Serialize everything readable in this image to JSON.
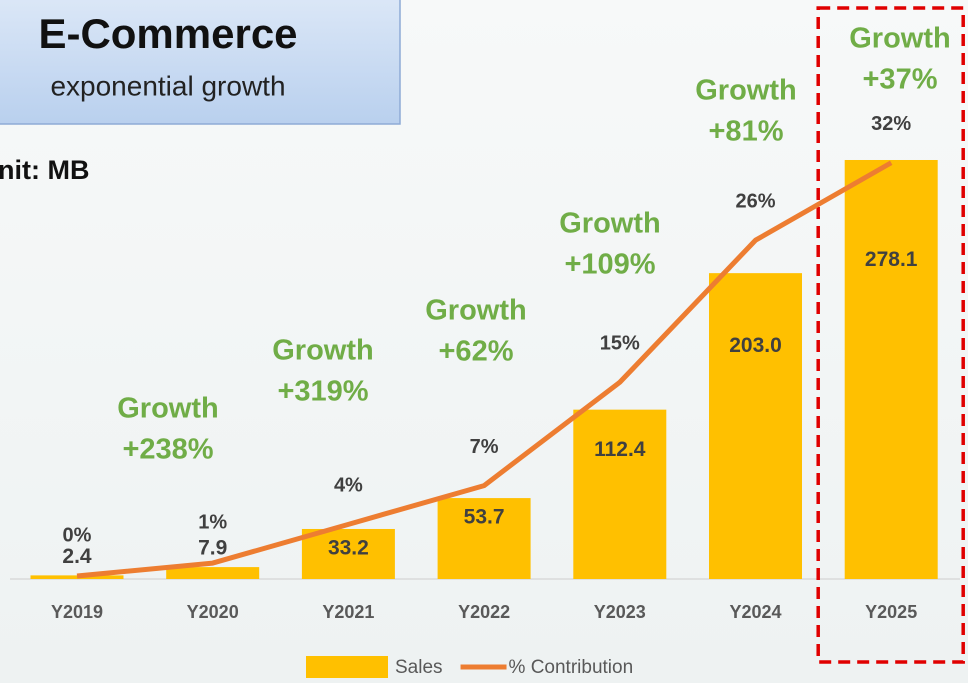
{
  "chart_data": {
    "type": "bar-line",
    "title": "E-Commerce",
    "subtitle": "exponential growth",
    "unit_label": "nit: MB",
    "categories": [
      "Y2019",
      "Y2020",
      "Y2021",
      "Y2022",
      "Y2023",
      "Y2024",
      "Y2025"
    ],
    "series": [
      {
        "name": "Sales",
        "type": "bar",
        "color": "#ffc000",
        "values": [
          2.4,
          7.9,
          33.2,
          53.7,
          112.4,
          203.0,
          278.1
        ],
        "value_labels": [
          "2.4",
          "7.9",
          "33.2",
          "53.7",
          "112.4",
          "203.0",
          "278.1"
        ]
      },
      {
        "name": "% Contribution",
        "type": "line",
        "axis": "y2",
        "color": "#ed7d31",
        "values": [
          0,
          1,
          4,
          7,
          15,
          26,
          32
        ],
        "value_labels": [
          "0%",
          "1%",
          "4%",
          "7%",
          "15%",
          "26%",
          "32%"
        ]
      }
    ],
    "annotations": [
      {
        "category": "Y2020",
        "lines": [
          "Growth",
          "+238%"
        ]
      },
      {
        "category": "Y2021",
        "lines": [
          "Growth",
          "+319%"
        ]
      },
      {
        "category": "Y2022",
        "lines": [
          "Growth",
          "+62%"
        ]
      },
      {
        "category": "Y2023",
        "lines": [
          "Growth",
          "+109%"
        ]
      },
      {
        "category": "Y2024",
        "lines": [
          "Growth",
          "+81%"
        ]
      },
      {
        "category": "Y2025",
        "lines": [
          "Growth",
          "+37%"
        ]
      }
    ],
    "ylim": [
      0,
      300
    ],
    "y2lim": [
      0,
      35
    ],
    "legend": "bottom",
    "highlight": "Y2025"
  }
}
